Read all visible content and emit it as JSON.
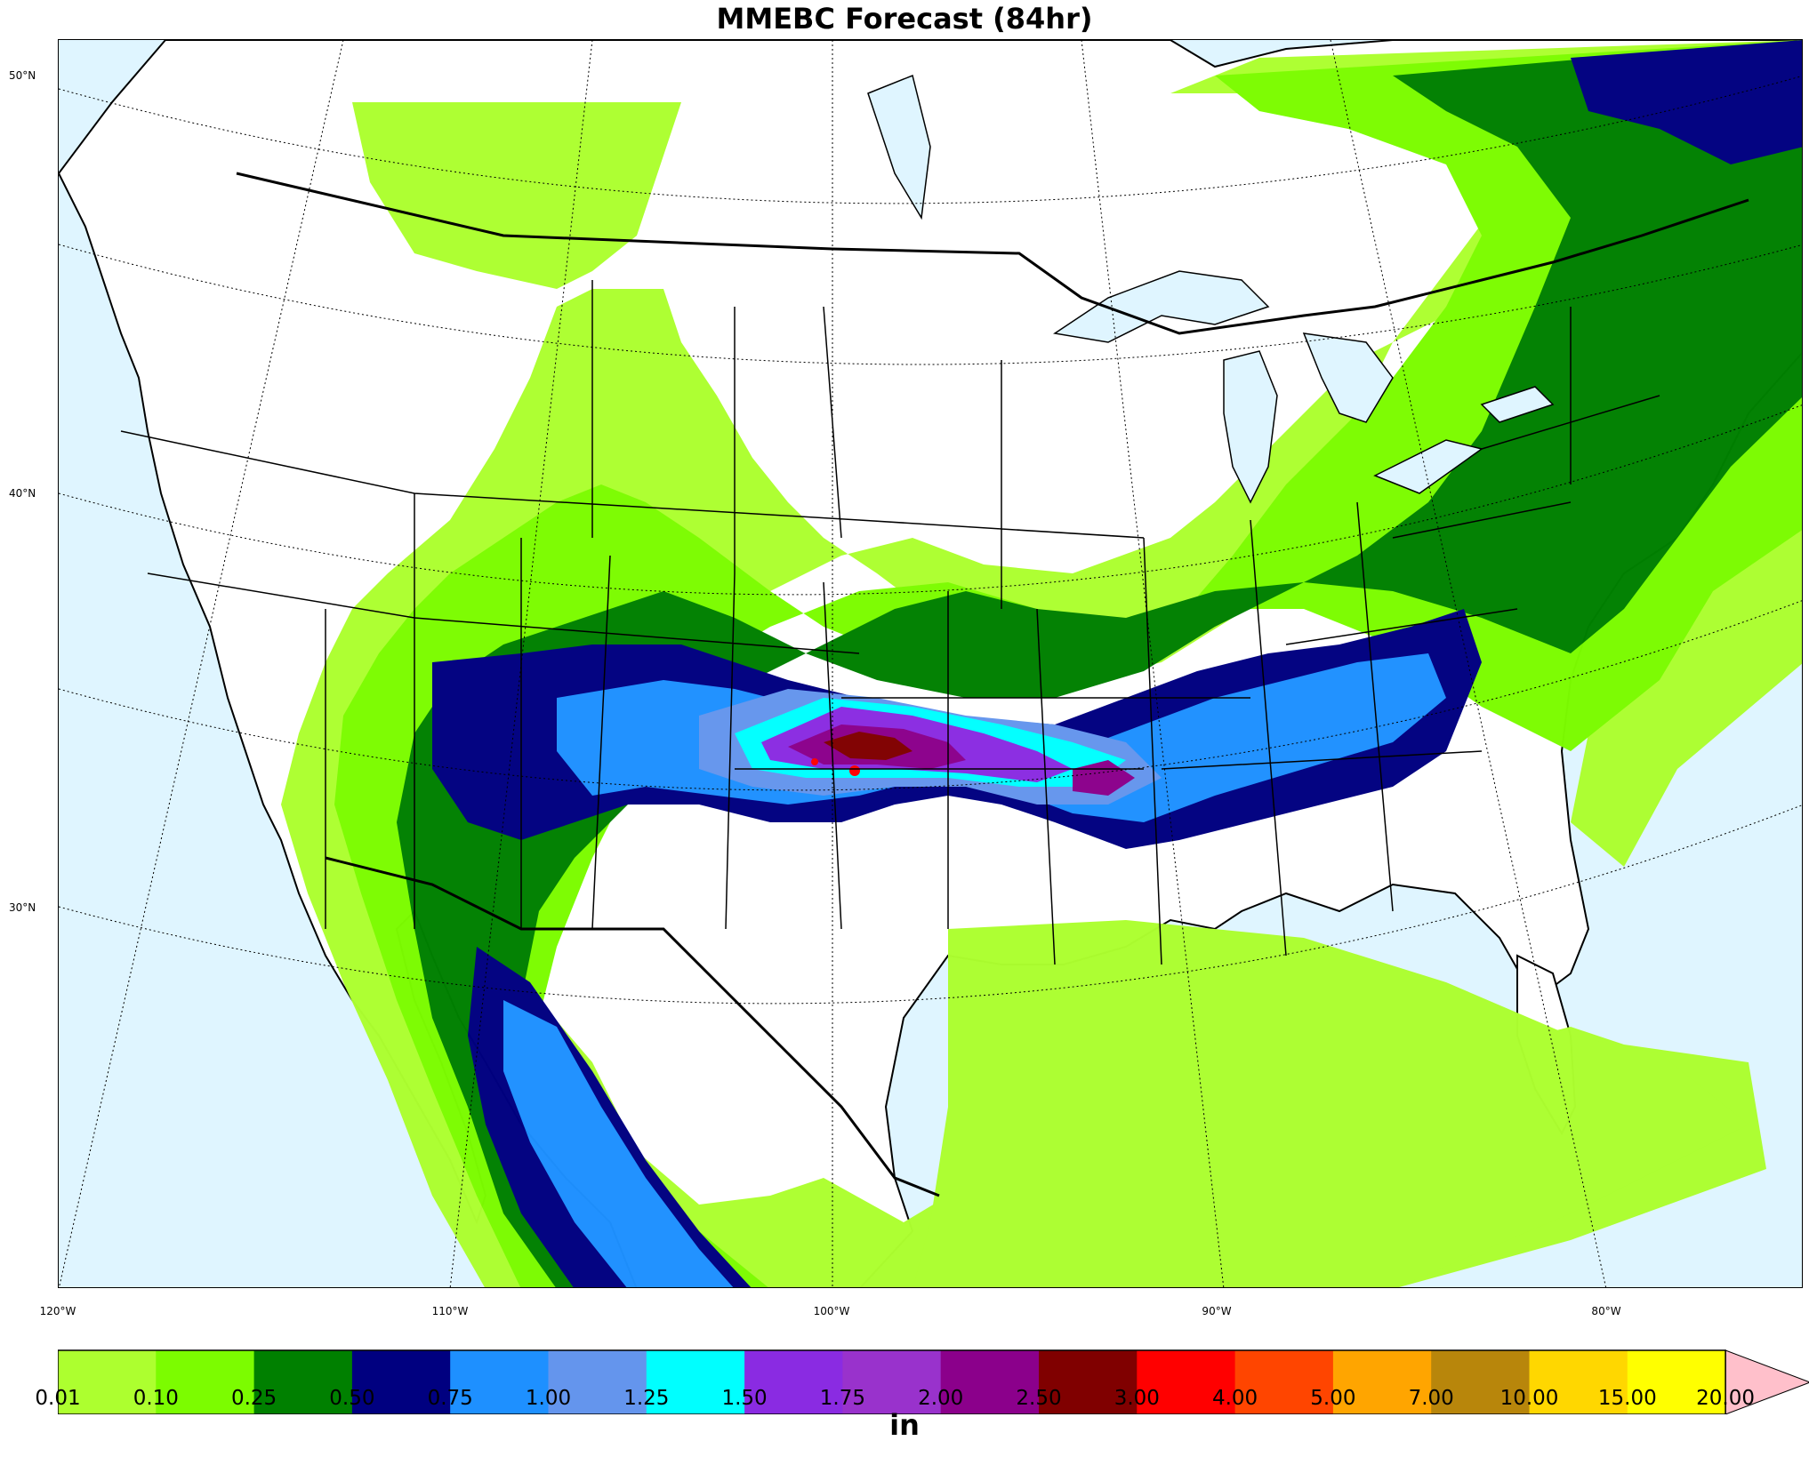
{
  "title": "MMEBC Forecast (84hr)",
  "lat_labels": [
    "50°N",
    "40°N",
    "30°N"
  ],
  "lon_labels": [
    "120°W",
    "110°W",
    "100°W",
    "90°W",
    "80°W"
  ],
  "colorbar": {
    "unit": "in",
    "ticks": [
      "0.01",
      "0.10",
      "0.25",
      "0.50",
      "0.75",
      "1.00",
      "1.25",
      "1.50",
      "1.75",
      "2.00",
      "2.50",
      "3.00",
      "4.00",
      "5.00",
      "7.00",
      "10.00",
      "15.00",
      "20.00"
    ],
    "colors": [
      "#adff2f",
      "#7cfc00",
      "#008000",
      "#000080",
      "#1e90ff",
      "#6495ed",
      "#00ffff",
      "#8a2be2",
      "#9932cc",
      "#8b008b",
      "#800000",
      "#ff0000",
      "#ff4500",
      "#ffa500",
      "#b8860b",
      "#ffd700",
      "#ffff00"
    ],
    "extend_color": "#ffc0cb"
  },
  "map": {
    "ocean_color": "#dff5ff",
    "land_color": "#ffffff",
    "precip_bands": [
      "#adff2f",
      "#7cfc00",
      "#008000",
      "#000080",
      "#1e90ff",
      "#6495ed",
      "#00ffff",
      "#8a2be2",
      "#8b008b",
      "#800000",
      "#ff0000"
    ]
  }
}
